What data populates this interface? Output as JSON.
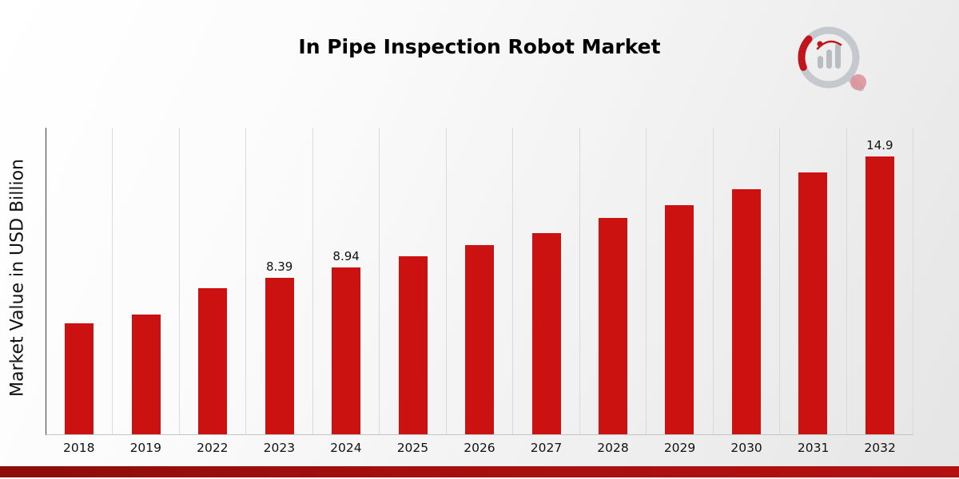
{
  "chart_data": {
    "type": "bar",
    "title": "In Pipe Inspection Robot Market",
    "ylabel": "Market Value in USD Billion",
    "xlabel": "",
    "categories": [
      "2018",
      "2019",
      "2022",
      "2023",
      "2024",
      "2025",
      "2026",
      "2027",
      "2028",
      "2029",
      "2030",
      "2031",
      "2032"
    ],
    "values": [
      5.95,
      6.45,
      7.85,
      8.39,
      8.94,
      9.55,
      10.15,
      10.8,
      11.6,
      12.3,
      13.15,
      14.05,
      14.9
    ],
    "data_labels": [
      "",
      "",
      "",
      "8.39",
      "8.94",
      "",
      "",
      "",
      "",
      "",
      "",
      "",
      "14.9"
    ],
    "ylim": [
      0,
      16.5
    ],
    "grid": "vertical-only",
    "legend": "none",
    "bar_color": "#cc1111"
  },
  "colors": {
    "bar": "#cc1111",
    "gridline": "#dadada",
    "axis": "#3f3f3f",
    "bottom_strip": "#a60f0f",
    "logo_gray": "#c5c8cd",
    "logo_red": "#c2151b"
  },
  "branding": {
    "logo": "magnifier-bar-chart-logo"
  }
}
